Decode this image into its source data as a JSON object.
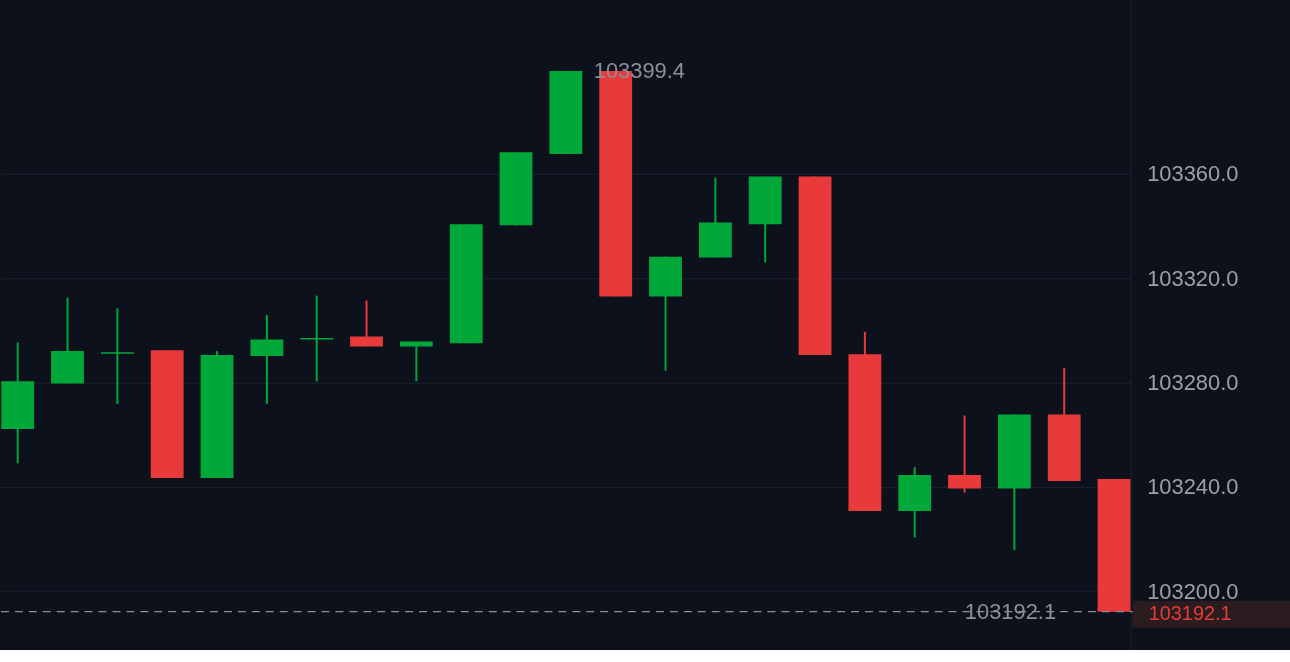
{
  "chart_data": {
    "type": "candlestick",
    "categories": [
      null,
      null,
      null,
      null,
      null,
      null,
      null,
      null,
      null,
      null,
      null,
      null,
      null,
      null,
      null,
      null,
      null,
      null,
      null,
      null,
      null,
      null,
      null
    ],
    "ohlc": [
      [
        103262.1,
        103295.3,
        103249.0,
        103280.4
      ],
      [
        103279.6,
        103312.5,
        103279.6,
        103292.0
      ],
      [
        103291.0,
        103308.4,
        103271.8,
        103291.6
      ],
      [
        103292.3,
        103292.3,
        103243.4,
        103243.4
      ],
      [
        103243.4,
        103292.0,
        103243.4,
        103290.5
      ],
      [
        103290.1,
        103305.8,
        103271.8,
        103296.4
      ],
      [
        103296.4,
        103313.3,
        103280.4,
        103297.0
      ],
      [
        103297.6,
        103311.4,
        103293.8,
        103293.8
      ],
      [
        103293.8,
        103295.7,
        103280.4,
        103295.7
      ],
      [
        103295.0,
        103340.6,
        103295.0,
        103340.6
      ],
      [
        103340.2,
        103368.2,
        103340.2,
        103368.2
      ],
      [
        103367.5,
        103399.4,
        103367.5,
        103399.4
      ],
      [
        103399.4,
        103399.4,
        103312.9,
        103312.9
      ],
      [
        103312.9,
        103328.2,
        103284.5,
        103328.2
      ],
      [
        103327.9,
        103358.5,
        103327.9,
        103341.3
      ],
      [
        103340.6,
        103358.9,
        103326.0,
        103358.9
      ],
      [
        103358.9,
        103358.9,
        103290.5,
        103290.5
      ],
      [
        103290.8,
        103299.4,
        103230.7,
        103230.7
      ],
      [
        103230.7,
        103247.5,
        103220.6,
        103244.5
      ],
      [
        103244.5,
        103267.3,
        103237.8,
        103239.3
      ],
      [
        103239.3,
        103267.7,
        103215.7,
        103267.7
      ],
      [
        103267.7,
        103285.6,
        103242.2,
        103242.2
      ],
      [
        103243.0,
        103243.0,
        103192.1,
        103192.1
      ]
    ],
    "colors": [
      "#00a83a",
      "#00a83a",
      "#00a83a",
      "#e83a3a",
      "#00a83a",
      "#00a83a",
      "#00a83a",
      "#e83a3a",
      "#00a83a",
      "#00a83a",
      "#00a83a",
      "#00a83a",
      "#e83a3a",
      "#00a83a",
      "#00a83a",
      "#00a83a",
      "#e83a3a",
      "#e83a3a",
      "#00a83a",
      "#e83a3a",
      "#00a83a",
      "#e83a3a",
      "#e83a3a"
    ],
    "ylim": [
      103178,
      103426
    ],
    "yticks": [
      {
        "value": 103200,
        "label": "103200.0"
      },
      {
        "value": 103240,
        "label": "103240.0"
      },
      {
        "value": 103280,
        "label": "103280.0"
      },
      {
        "value": 103320,
        "label": "103320.0"
      },
      {
        "value": 103360,
        "label": "103360.0"
      }
    ],
    "grid": "y",
    "tick_labels": "y",
    "annotations": [
      "103399.4"
    ],
    "ref_lines": [
      {
        "axis": "y",
        "value": 103192.1,
        "label": "103192.1",
        "color": "#8a8f99",
        "line_style": "dashed"
      }
    ]
  }
}
